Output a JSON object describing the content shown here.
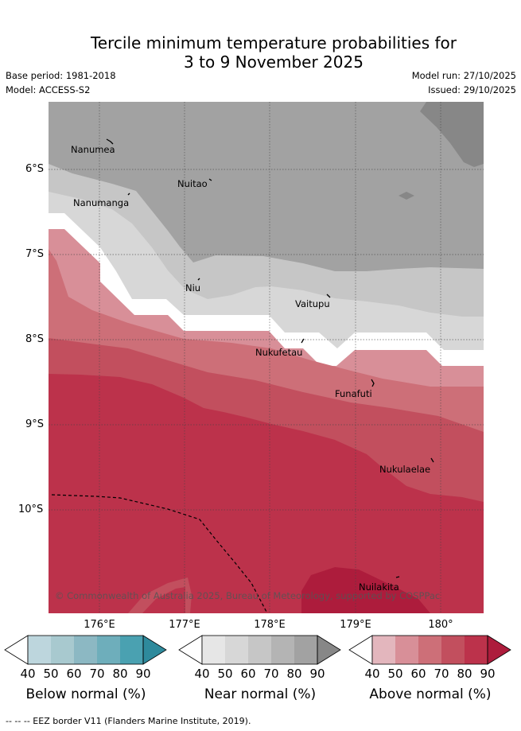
{
  "header": {
    "title_line1": "Tercile minimum temperature probabilities for",
    "title_line2": "3 to 9 November 2025",
    "base_period": "Base period: 1981-2018",
    "model": "Model: ACCESS-S2",
    "model_run": "Model run: 27/10/2025",
    "issued": "Issued: 29/10/2025"
  },
  "map": {
    "lat_labels": [
      "6°S",
      "7°S",
      "8°S",
      "9°S",
      "10°S"
    ],
    "lon_labels": [
      "176°E",
      "177°E",
      "178°E",
      "179°E",
      "180°"
    ],
    "places": [
      "Nanumea",
      "Nuitao",
      "Nanumanga",
      "Niu",
      "Vaitupu",
      "Nukufetau",
      "Funafuti",
      "Nukulaelae",
      "Nuilakita"
    ],
    "copyright": "© Commonwealth of Australia 2025, Bureau of Meteorology, supported by COSPPac"
  },
  "colorbars": [
    {
      "label": "Below normal (%)",
      "ticks": [
        "40",
        "50",
        "60",
        "70",
        "80",
        "90"
      ],
      "colors": [
        "#ffffff",
        "#bdd6dd",
        "#a8c9cf",
        "#8cb8c3",
        "#6eaebb",
        "#4aa1b1",
        "#2e8a9c"
      ]
    },
    {
      "label": "Near normal (%)",
      "ticks": [
        "40",
        "50",
        "60",
        "70",
        "80",
        "90"
      ],
      "colors": [
        "#ffffff",
        "#e6e6e6",
        "#d7d7d7",
        "#c6c6c6",
        "#b4b4b4",
        "#a2a2a2",
        "#878787"
      ]
    },
    {
      "label": "Above normal (%)",
      "ticks": [
        "40",
        "50",
        "60",
        "70",
        "80",
        "90"
      ],
      "colors": [
        "#ffffff",
        "#e3b6bd",
        "#d88f98",
        "#cd6f78",
        "#c24f5e",
        "#bc324b",
        "#ad1c3c"
      ]
    }
  ],
  "footnote": "-- -- -- EEZ border V11 (Flanders Marine Institute, 2019)."
}
